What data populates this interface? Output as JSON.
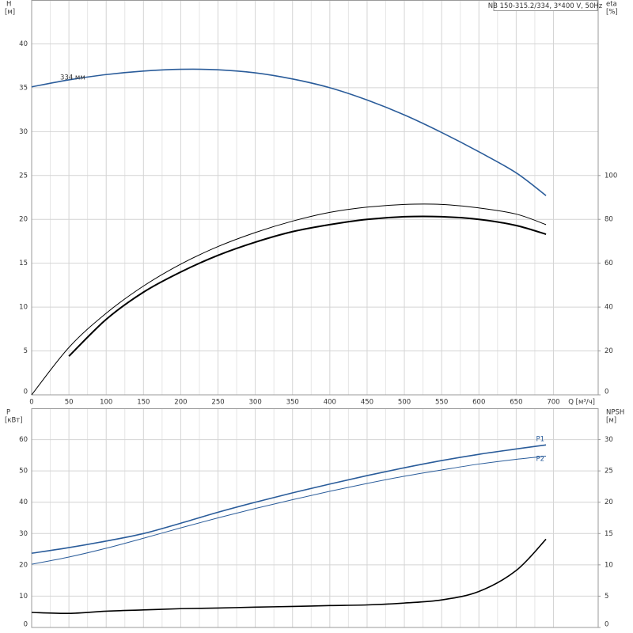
{
  "chart_data": [
    {
      "type": "line",
      "title": "NB 150-315.2/334, 3*400 V, 50Hz",
      "ylabel": "H",
      "yunit": "[м]",
      "y2label": "eta",
      "y2unit": "[%]",
      "xlabel": "Q [м³/ч]",
      "x": [
        0,
        50,
        100,
        150,
        200,
        250,
        300,
        350,
        400,
        450,
        500,
        550,
        600,
        650,
        690
      ],
      "xlim": [
        0,
        760
      ],
      "xticks": [
        0,
        50,
        100,
        150,
        200,
        250,
        300,
        350,
        400,
        450,
        500,
        550,
        600,
        650,
        700
      ],
      "ylim": [
        0,
        45
      ],
      "yticks": [
        0,
        5,
        10,
        15,
        20,
        25,
        30,
        35,
        40
      ],
      "y2lim": [
        0,
        180
      ],
      "y2ticks": [
        0,
        20,
        40,
        60,
        80,
        100
      ],
      "grid": true,
      "series": [
        {
          "name": "334 мм",
          "color": "#2a5c9a",
          "values": [
            35.1,
            35.9,
            36.5,
            36.9,
            37.1,
            37.05,
            36.7,
            36.0,
            35.0,
            33.6,
            31.9,
            29.9,
            27.7,
            25.3,
            22.7
          ]
        },
        {
          "color": "#000000",
          "axis": "y2",
          "values": [
            0,
            21.6,
            37.2,
            49.6,
            59.6,
            67.6,
            74,
            79.2,
            83.2,
            85.6,
            86.8,
            86.8,
            85.2,
            82.4,
            77.6
          ]
        },
        {
          "color": "#000000",
          "axis": "y2",
          "values": [
            null,
            17.6,
            34.4,
            46.8,
            56,
            63.6,
            69.6,
            74.4,
            77.6,
            80,
            81.2,
            81.2,
            80,
            77.2,
            73.2
          ]
        }
      ]
    },
    {
      "type": "line",
      "ylabel": "P",
      "yunit": "[кВт]",
      "y2label": "NPSH",
      "y2unit": "[м]",
      "x": [
        0,
        50,
        100,
        150,
        200,
        250,
        300,
        350,
        400,
        450,
        500,
        550,
        600,
        650,
        690
      ],
      "xlim": [
        0,
        760
      ],
      "ylim": [
        0,
        70
      ],
      "yticks": [
        0,
        10,
        20,
        30,
        40,
        50,
        60
      ],
      "y2lim": [
        0,
        35
      ],
      "y2ticks": [
        0,
        5,
        10,
        15,
        20,
        25,
        30
      ],
      "grid": true,
      "series": [
        {
          "name": "P1",
          "color": "#2a5c9a",
          "values": [
            23.7,
            25.5,
            27.6,
            30,
            33.3,
            36.8,
            40.0,
            43.0,
            45.8,
            48.5,
            51,
            53.3,
            55.3,
            57,
            58.3
          ]
        },
        {
          "name": "P2",
          "color": "#2a5c9a",
          "values": [
            20.2,
            22.5,
            25.3,
            28.5,
            31.8,
            35,
            38,
            40.8,
            43.5,
            46,
            48.3,
            50.3,
            52.2,
            53.7,
            54.7
          ]
        },
        {
          "color": "#000000",
          "axis": "y2",
          "values": [
            2.4,
            2.25,
            2.6,
            2.8,
            3.0,
            3.1,
            3.25,
            3.35,
            3.5,
            3.6,
            3.9,
            4.4,
            5.75,
            9.1,
            14.1
          ]
        }
      ]
    }
  ]
}
